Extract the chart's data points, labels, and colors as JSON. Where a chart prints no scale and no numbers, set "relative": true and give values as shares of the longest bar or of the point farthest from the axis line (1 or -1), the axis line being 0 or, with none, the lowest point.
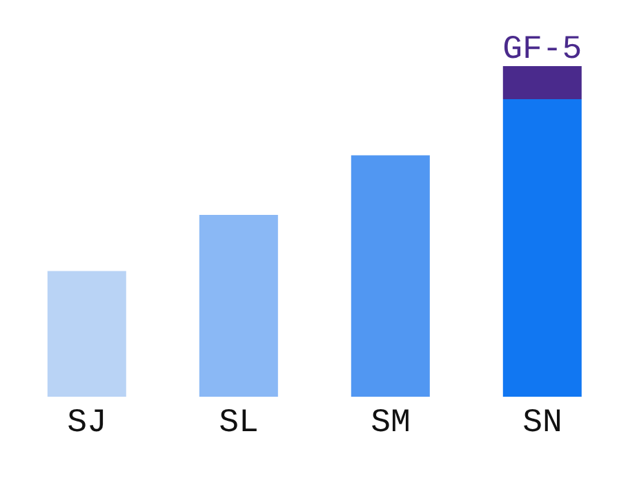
{
  "chart_data": {
    "type": "bar",
    "relative": true,
    "stacked": true,
    "legend": false,
    "grid": false,
    "categories": [
      "SJ",
      "SL",
      "SM",
      "SN"
    ],
    "series": [
      {
        "colors": [
          "#b9d3f5",
          "#8ab8f5",
          "#5197f2",
          "#1177f2"
        ],
        "values": [
          0.38,
          0.55,
          0.73,
          0.9
        ]
      },
      {
        "name": "GF-5",
        "color": "#4a2a8c",
        "values": [
          null,
          null,
          null,
          0.1
        ]
      }
    ]
  }
}
